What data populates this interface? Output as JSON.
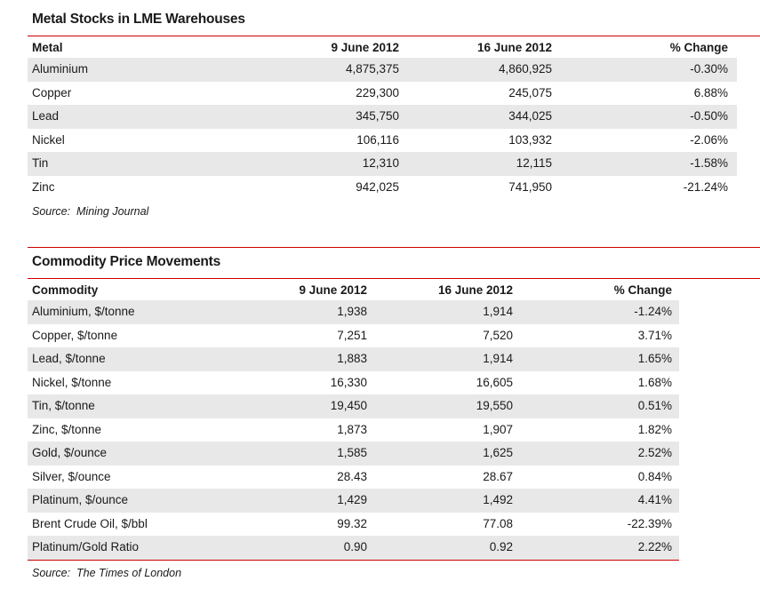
{
  "page": {
    "background_color": "#ffffff",
    "accent_red": "#cc0000",
    "stripe_gray": "#e8e8e8",
    "text_color": "#1a1a1a"
  },
  "tables": [
    {
      "title": "Metal Stocks in LME Warehouses",
      "columns": [
        "Metal",
        "9 June 2012",
        "16 June 2012",
        "% Change"
      ],
      "rows": [
        [
          "Aluminium",
          "4,875,375",
          "4,860,925",
          "-0.30%"
        ],
        [
          "Copper",
          "229,300",
          "245,075",
          "6.88%"
        ],
        [
          "Lead",
          "345,750",
          "344,025",
          "-0.50%"
        ],
        [
          "Nickel",
          "106,116",
          "103,932",
          "-2.06%"
        ],
        [
          "Tin",
          "12,310",
          "12,115",
          "-1.58%"
        ],
        [
          "Zinc",
          "942,025",
          "741,950",
          "-21.24%"
        ]
      ],
      "source": "Source:  Mining Journal"
    },
    {
      "title": "Commodity Price Movements",
      "columns": [
        "Commodity",
        "9 June 2012",
        "16 June 2012",
        "% Change"
      ],
      "rows": [
        [
          "Aluminium, $/tonne",
          "1,938",
          "1,914",
          "-1.24%"
        ],
        [
          "Copper, $/tonne",
          "7,251",
          "7,520",
          "3.71%"
        ],
        [
          "Lead, $/tonne",
          "1,883",
          "1,914",
          "1.65%"
        ],
        [
          "Nickel, $/tonne",
          "16,330",
          "16,605",
          "1.68%"
        ],
        [
          "Tin, $/tonne",
          "19,450",
          "19,550",
          "0.51%"
        ],
        [
          "Zinc, $/tonne",
          "1,873",
          "1,907",
          "1.82%"
        ],
        [
          "Gold, $/ounce",
          "1,585",
          "1,625",
          "2.52%"
        ],
        [
          "Silver, $/ounce",
          "28.43",
          "28.67",
          "0.84%"
        ],
        [
          "Platinum, $/ounce",
          "1,429",
          "1,492",
          "4.41%"
        ],
        [
          "Brent Crude Oil, $/bbl",
          "99.32",
          "77.08",
          "-22.39%"
        ],
        [
          "Platinum/Gold Ratio",
          "0.90",
          "0.92",
          "2.22%"
        ]
      ],
      "source": "Source:  The Times of London"
    }
  ],
  "chart_data": [
    {
      "type": "table",
      "title": "Metal Stocks in LME Warehouses",
      "columns": [
        "Metal",
        "9 June 2012",
        "16 June 2012",
        "% Change"
      ],
      "rows": [
        [
          "Aluminium",
          4875375,
          4860925,
          -0.3
        ],
        [
          "Copper",
          229300,
          245075,
          6.88
        ],
        [
          "Lead",
          345750,
          344025,
          -0.5
        ],
        [
          "Nickel",
          106116,
          103932,
          -2.06
        ],
        [
          "Tin",
          12310,
          12115,
          -1.58
        ],
        [
          "Zinc",
          942025,
          741950,
          -21.24
        ]
      ],
      "source": "Mining Journal"
    },
    {
      "type": "table",
      "title": "Commodity Price Movements",
      "columns": [
        "Commodity",
        "9 June 2012",
        "16 June 2012",
        "% Change"
      ],
      "rows": [
        [
          "Aluminium, $/tonne",
          1938,
          1914,
          -1.24
        ],
        [
          "Copper, $/tonne",
          7251,
          7520,
          3.71
        ],
        [
          "Lead, $/tonne",
          1883,
          1914,
          1.65
        ],
        [
          "Nickel, $/tonne",
          16330,
          16605,
          1.68
        ],
        [
          "Tin, $/tonne",
          19450,
          19550,
          0.51
        ],
        [
          "Zinc, $/tonne",
          1873,
          1907,
          1.82
        ],
        [
          "Gold, $/ounce",
          1585,
          1625,
          2.52
        ],
        [
          "Silver, $/ounce",
          28.43,
          28.67,
          0.84
        ],
        [
          "Platinum, $/ounce",
          1429,
          1492,
          4.41
        ],
        [
          "Brent Crude Oil, $/bbl",
          99.32,
          77.08,
          -22.39
        ],
        [
          "Platinum/Gold Ratio",
          0.9,
          0.92,
          2.22
        ]
      ],
      "source": "The Times of London"
    }
  ]
}
